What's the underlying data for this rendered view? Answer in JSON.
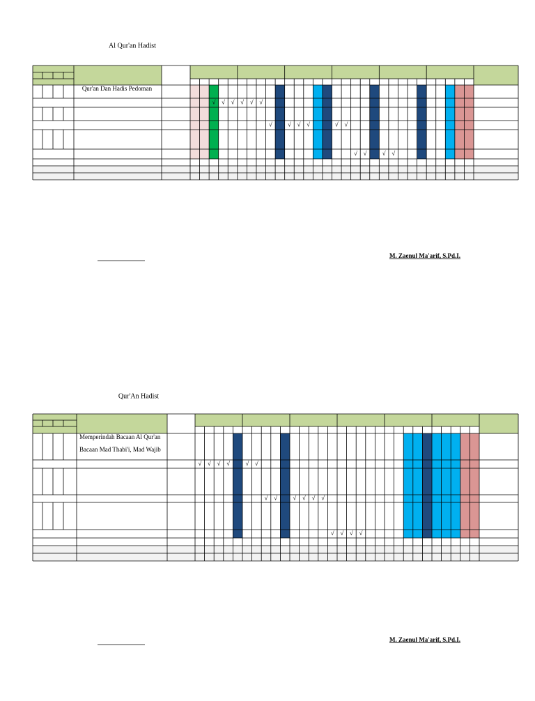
{
  "documents": [
    {
      "title": "Al Qur'an Hadist",
      "rows": [
        {
          "topic": [
            "Qur'an Dan Hadis Pedoman"
          ]
        },
        {
          "weeks": [
            null,
            null,
            "√",
            "√",
            "√",
            "√",
            "√",
            "√",
            null,
            null,
            null,
            null,
            null,
            null,
            null,
            null,
            null,
            null,
            null,
            null,
            null,
            null,
            null,
            null,
            null,
            null,
            null,
            null,
            null,
            null
          ]
        },
        {},
        {
          "weeks": [
            null,
            null,
            null,
            null,
            null,
            null,
            null,
            null,
            "√",
            null,
            "√",
            "√",
            "√",
            null,
            null,
            "√",
            "√",
            null,
            null,
            null,
            null,
            null,
            null,
            null,
            null,
            null,
            null,
            null,
            null,
            null
          ]
        },
        {},
        {
          "weeks": [
            null,
            null,
            null,
            null,
            null,
            null,
            null,
            null,
            null,
            null,
            null,
            null,
            null,
            null,
            null,
            null,
            null,
            "√",
            "√",
            null,
            "√",
            "√",
            null,
            null,
            null,
            null,
            null,
            null,
            null,
            null
          ]
        }
      ],
      "signature": "M. Zaenul Ma'arif, S.Pd.I."
    },
    {
      "title": "Qur'An Hadist",
      "rows": [
        {
          "topic": [
            "Memperindah Bacaan Al Qur'an",
            "Bacaan Mad Thabi'i, Mad Wajib"
          ]
        },
        {
          "weeks": [
            "√",
            "√",
            "√",
            "√",
            null,
            "√",
            "√",
            null,
            null,
            null,
            null,
            null,
            null,
            null,
            null,
            null,
            null,
            null,
            null,
            null,
            null,
            null,
            null,
            null,
            null,
            null,
            null,
            null,
            null,
            null
          ]
        },
        {},
        {
          "weeks": [
            null,
            null,
            null,
            null,
            null,
            null,
            null,
            "√",
            "√",
            null,
            "√",
            "√",
            "√",
            "√",
            null,
            null,
            null,
            null,
            null,
            null,
            null,
            null,
            null,
            null,
            null,
            null,
            null,
            null,
            null,
            null
          ]
        },
        {},
        {
          "weeks": [
            null,
            null,
            null,
            null,
            null,
            null,
            null,
            null,
            null,
            null,
            null,
            null,
            null,
            null,
            "√",
            "√",
            "√",
            "√",
            null,
            null,
            null,
            null,
            null,
            null,
            null,
            null,
            null,
            null,
            null,
            null
          ]
        }
      ],
      "signature": "M. Zaenul Ma'arif, S.Pd.I."
    }
  ]
}
